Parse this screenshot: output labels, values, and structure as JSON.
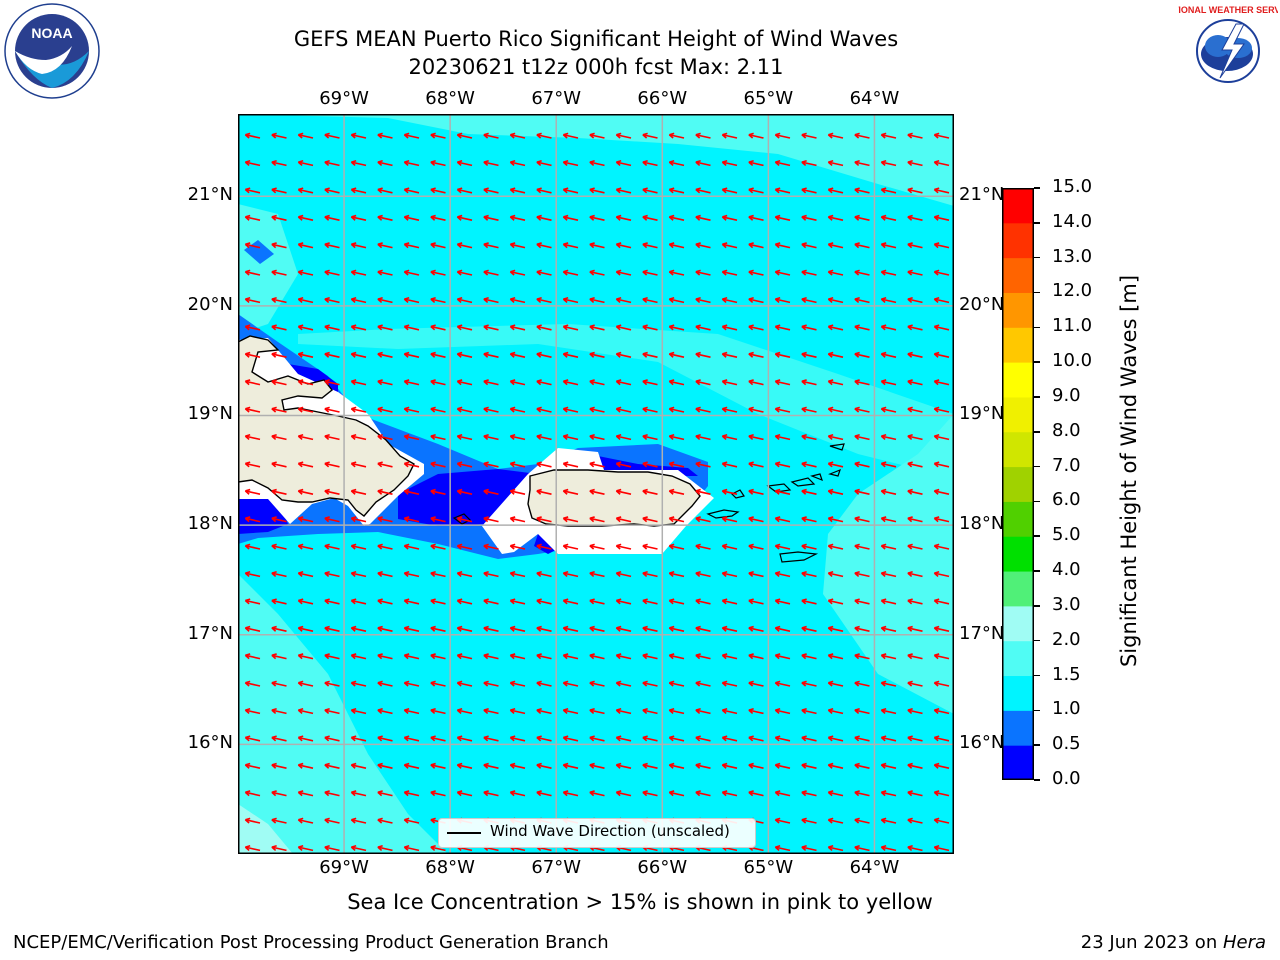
{
  "title": {
    "line1": "GEFS MEAN Puerto Rico Significant Height of Wind Waves",
    "line2": "20230621 t12z 000h fcst   Max: 2.11"
  },
  "logos": {
    "left_name": "NOAA",
    "right_name": "NATIONAL WEATHER SERVICE"
  },
  "axes": {
    "lon_labels": [
      "69°W",
      "68°W",
      "67°W",
      "66°W",
      "65°W",
      "64°W"
    ],
    "lat_labels": [
      "21°N",
      "20°N",
      "19°N",
      "18°N",
      "17°N",
      "16°N"
    ],
    "lon_values": [
      -69,
      -68,
      -67,
      -66,
      -65,
      -64
    ],
    "lat_values": [
      21,
      20,
      19,
      18,
      17,
      16
    ],
    "lon_range": [
      -70.0,
      -63.25
    ],
    "lat_range": [
      15.0,
      21.75
    ]
  },
  "legend": {
    "label": "Wind Wave Direction (unscaled)"
  },
  "colorbar": {
    "label": "Significant Height of Wind Waves [m]",
    "levels": [
      0.0,
      0.5,
      1.0,
      1.5,
      2.0,
      3.0,
      4.0,
      5.0,
      6.0,
      7.0,
      8.0,
      9.0,
      10.0,
      11.0,
      12.0,
      13.0,
      14.0,
      15.0
    ],
    "tick_labels": [
      "0.0",
      "0.5",
      "1.0",
      "1.5",
      "2.0",
      "3.0",
      "4.0",
      "5.0",
      "6.0",
      "7.0",
      "8.0",
      "9.0",
      "10.0",
      "11.0",
      "12.0",
      "13.0",
      "14.0",
      "15.0"
    ],
    "colors": [
      "#0000ff",
      "#0a74ff",
      "#00f4ff",
      "#50fcf4",
      "#a0fcf4",
      "#50f078",
      "#00e000",
      "#50d000",
      "#a0d200",
      "#d0e600",
      "#f0f000",
      "#ffff00",
      "#ffc800",
      "#ff9600",
      "#ff6400",
      "#ff3200",
      "#ff0000"
    ]
  },
  "notes": {
    "sea_ice": "Sea Ice Concentration > 15% is shown in pink to yellow"
  },
  "footer": {
    "left": "NCEP/EMC/Verification Post Processing Product Generation Branch",
    "right_prefix": "23 Jun 2023 on ",
    "right_machine": "Hera"
  },
  "palette": {
    "ocean": "#00f4ff",
    "ocean_light": "#50fcf4",
    "ocean_lighter": "#a0fcf4",
    "deep_blue": "#0000ff",
    "mid_blue": "#0a74ff",
    "land": "#eeeddc",
    "grid": "#b0b0b0",
    "arrow": "#ff0000"
  }
}
